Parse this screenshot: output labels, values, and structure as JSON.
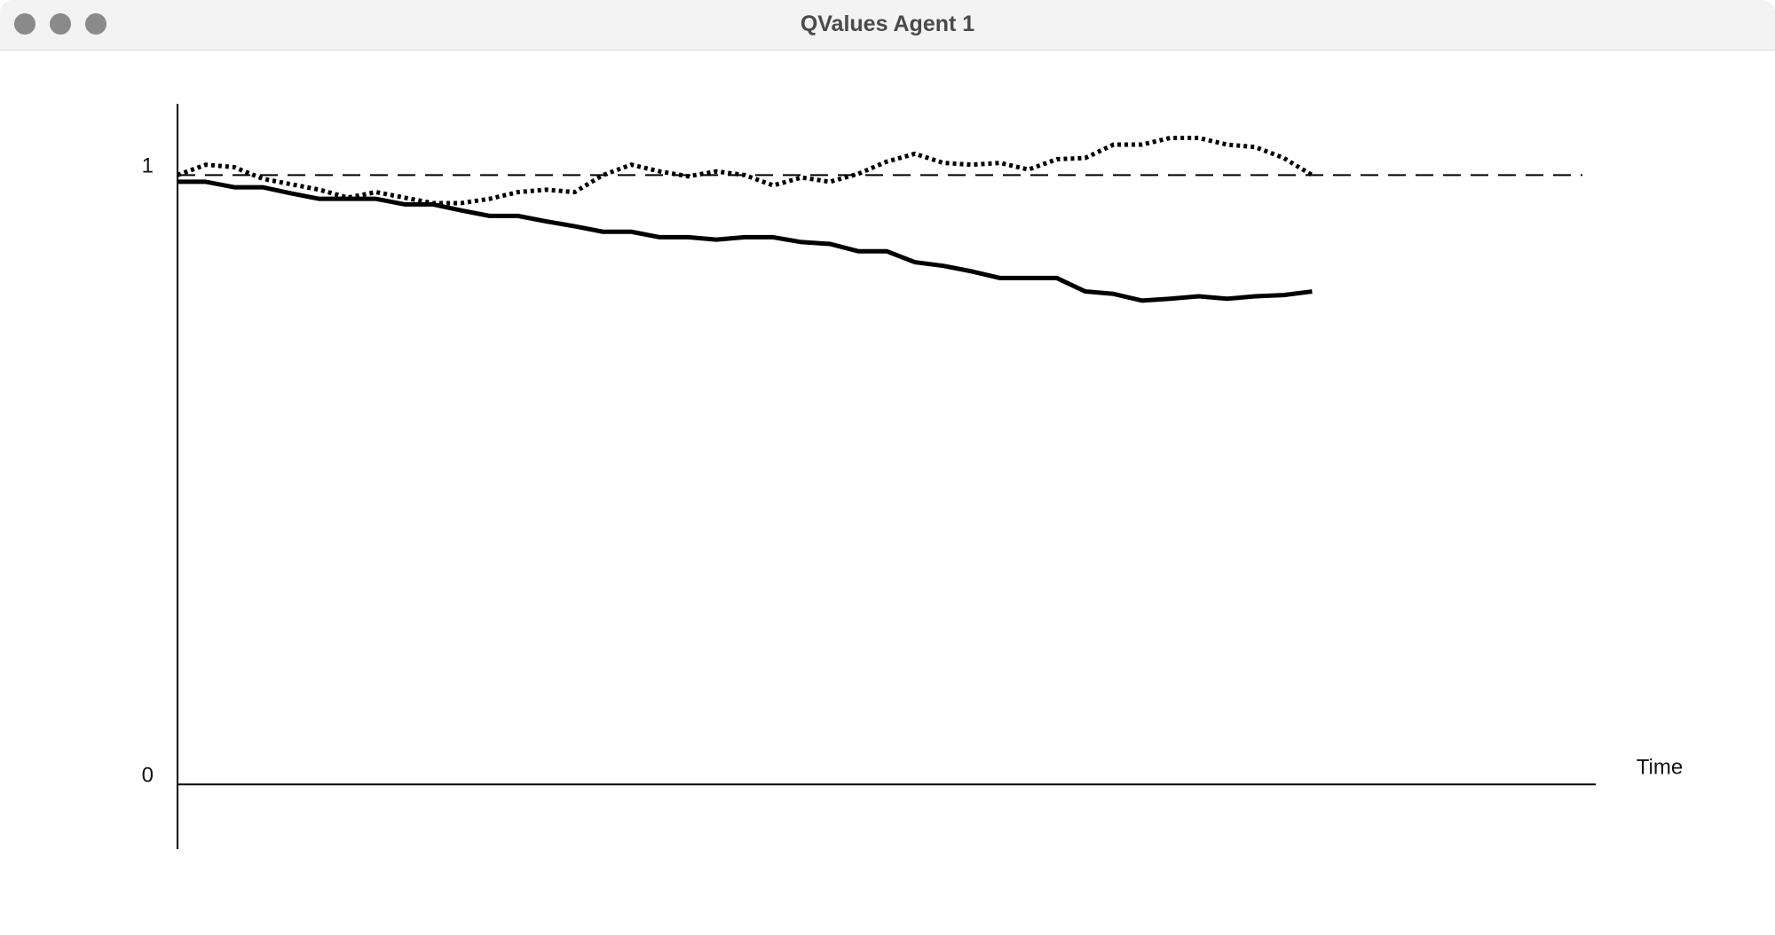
{
  "window": {
    "title": "QValues Agent 1"
  },
  "chart_data": {
    "type": "line",
    "x_label": "Time",
    "x": [
      0,
      1,
      2,
      3,
      4,
      5,
      6,
      7,
      8,
      9,
      10,
      11,
      12,
      13,
      14,
      15,
      16,
      17,
      18,
      19,
      20,
      21,
      22,
      23,
      24,
      25,
      26,
      27,
      28,
      29,
      30,
      31,
      32,
      33,
      34,
      35,
      36,
      37,
      38,
      39,
      40
    ],
    "series": [
      {
        "color": "#000000",
        "style": "solid",
        "values": [
          0.989,
          0.989,
          0.98,
          0.98,
          0.97,
          0.961,
          0.961,
          0.961,
          0.952,
          0.952,
          0.942,
          0.933,
          0.933,
          0.924,
          0.916,
          0.907,
          0.907,
          0.898,
          0.898,
          0.894,
          0.898,
          0.898,
          0.89,
          0.887,
          0.875,
          0.875,
          0.857,
          0.851,
          0.842,
          0.831,
          0.831,
          0.831,
          0.809,
          0.805,
          0.794,
          0.797,
          0.801,
          0.797,
          0.801,
          0.803,
          0.809
        ]
      },
      {
        "color": "#000000",
        "style": "dotted",
        "values": [
          1.0,
          1.017,
          1.013,
          0.994,
          0.985,
          0.976,
          0.963,
          0.972,
          0.963,
          0.954,
          0.954,
          0.961,
          0.972,
          0.976,
          0.972,
          1.0,
          1.017,
          1.006,
          0.998,
          1.006,
          1.0,
          0.983,
          0.996,
          0.989,
          1.002,
          1.022,
          1.035,
          1.02,
          1.017,
          1.02,
          1.009,
          1.026,
          1.028,
          1.05,
          1.05,
          1.061,
          1.061,
          1.05,
          1.046,
          1.028,
          1.0
        ]
      }
    ],
    "reference_line": 1,
    "xlim": [
      0,
      50
    ],
    "ylim": [
      -0.106,
      1.117
    ],
    "yticks": [
      0,
      1
    ],
    "grid": false
  }
}
